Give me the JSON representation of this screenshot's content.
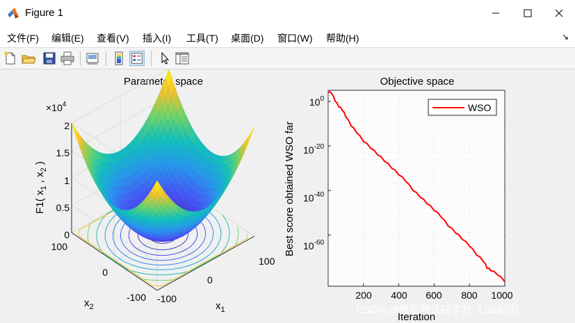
{
  "window": {
    "title": "Figure 1",
    "icon": "matlab-logo-icon",
    "controls": [
      "minimize-icon",
      "maximize-icon",
      "close-icon"
    ]
  },
  "menu": {
    "items": [
      {
        "label": "文件(F)"
      },
      {
        "label": "编辑(E)"
      },
      {
        "label": "查看(V)"
      },
      {
        "label": "插入(I)"
      },
      {
        "label": "工具(T)"
      },
      {
        "label": "桌面(D)"
      },
      {
        "label": "窗口(W)"
      },
      {
        "label": "帮助(H)"
      }
    ],
    "dock_arrow": "↘"
  },
  "toolbar": {
    "buttons": [
      "new-figure-icon",
      "open-file-icon",
      "save-icon",
      "print-icon",
      "link-plot-icon",
      "colorbar-icon",
      "legend-icon",
      "pointer-icon",
      "property-inspector-icon"
    ],
    "pressed": "legend-icon"
  },
  "chart_data": [
    {
      "type": "surface",
      "title": "Parameter space",
      "xlabel": "x",
      "xlabel_sub": "1",
      "ylabel": "x",
      "ylabel_sub": "2",
      "zlabel_parts": [
        "F1( x",
        "1",
        " , x",
        "2",
        " )"
      ],
      "x_ticks": [
        "100",
        "0",
        "-100"
      ],
      "y_ticks": [
        "100",
        "0",
        "-100"
      ],
      "z_ticks": [
        "0",
        "0.5",
        "1",
        "1.5",
        "2"
      ],
      "z_exponent_base": "×10",
      "z_exponent": "4",
      "function": "x1^2 + x2^2",
      "xlim": [
        -100,
        100
      ],
      "ylim": [
        -100,
        100
      ],
      "zlim": [
        0,
        20000
      ],
      "contour_levels": [
        500,
        1500,
        2800,
        4300,
        6000,
        8000,
        10500,
        13500,
        17000
      ],
      "colormap": "parula",
      "grid": true
    },
    {
      "type": "line",
      "title": "Objective space",
      "xlabel": "Iteration",
      "ylabel": "Best score obtained WSO far",
      "yscale": "log",
      "xlim": [
        0,
        1000
      ],
      "ylim_exponents": [
        -83,
        5
      ],
      "x_ticks": [
        "200",
        "400",
        "600",
        "800",
        "1000"
      ],
      "y_ticks": [
        {
          "base": "10",
          "exp": "0"
        },
        {
          "base": "10",
          "exp": "-20"
        },
        {
          "base": "10",
          "exp": "-40"
        },
        {
          "base": "10",
          "exp": "-60"
        }
      ],
      "grid": true,
      "legend": "top-right",
      "series": [
        {
          "name": "WSO",
          "color": "#ff0000",
          "x": [
            1,
            20,
            40,
            60,
            80,
            100,
            130,
            160,
            200,
            240,
            280,
            320,
            360,
            400,
            440,
            480,
            520,
            560,
            600,
            640,
            680,
            720,
            760,
            800,
            840,
            880,
            900,
            920,
            960,
            1000
          ],
          "log10_y": [
            4,
            3.5,
            0,
            -2.5,
            -4,
            -7,
            -11,
            -14,
            -18,
            -21,
            -24,
            -27,
            -30,
            -33,
            -36,
            -40,
            -43,
            -46,
            -49,
            -52,
            -56,
            -59,
            -62,
            -65,
            -69,
            -72,
            -75,
            -76,
            -78,
            -81
          ]
        }
      ]
    }
  ],
  "watermark": "CSDN @智能算法研学社（Jack旭）"
}
